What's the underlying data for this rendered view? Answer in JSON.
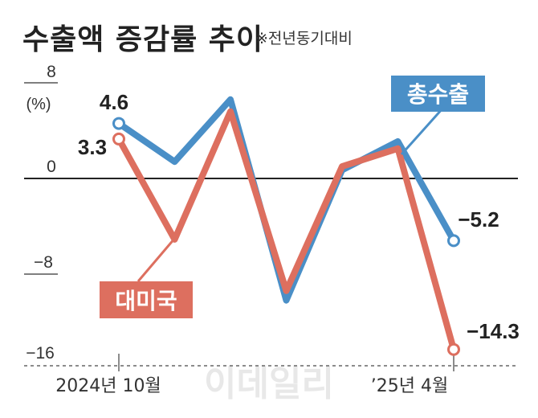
{
  "title": "수출액 증감률 추이",
  "subtitle": "※전년동기대비",
  "watermark": "이데일리",
  "colors": {
    "total": "#4a8fc7",
    "us": "#dd6f5f"
  },
  "chart_data": {
    "type": "line",
    "ylabel": "(%)",
    "ylim": [
      -16,
      8
    ],
    "yticks": [
      "8",
      "0",
      "−8",
      "−16"
    ],
    "xtick_labels": [
      "2024년 10월",
      "’25년 4월"
    ],
    "x": [
      "2024-10",
      "2024-11",
      "2024-12",
      "2025-01",
      "2025-02",
      "2025-03",
      "2025-04"
    ],
    "series": [
      {
        "name": "총수출",
        "values": [
          4.6,
          1.4,
          6.6,
          -10.2,
          0.7,
          3.1,
          -5.2
        ]
      },
      {
        "name": "대미국",
        "values": [
          3.3,
          -5.1,
          5.6,
          -9.4,
          1.0,
          2.5,
          -14.3
        ]
      }
    ],
    "data_labels": {
      "total_first": "4.6",
      "us_first": "3.3",
      "total_last": "−5.2",
      "us_last": "−14.3"
    }
  }
}
